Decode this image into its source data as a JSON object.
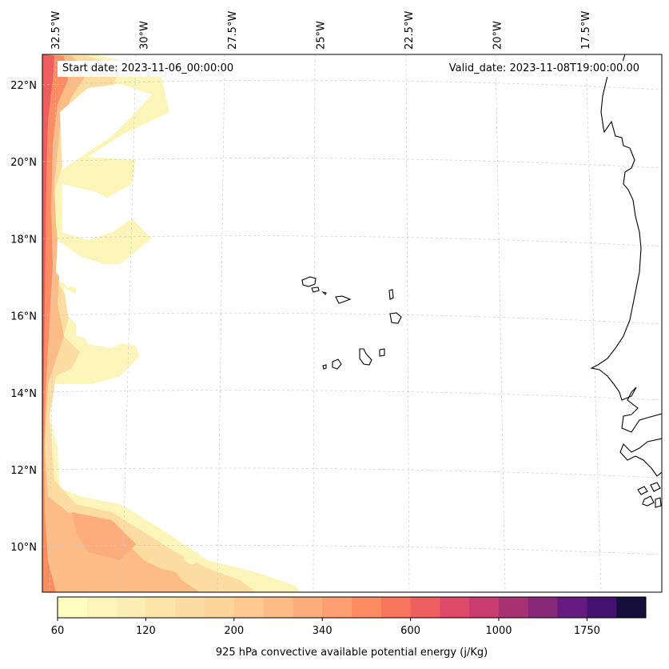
{
  "map": {
    "start_date_label": "Start date: 2023-11-06_00:00:00",
    "valid_date_label": "Valid_date: 2023-11-08T19:00:00.00",
    "lon_ticks": [
      {
        "label": "32.5°W",
        "lon": -32.5
      },
      {
        "label": "30°W",
        "lon": -30
      },
      {
        "label": "27.5°W",
        "lon": -27.5
      },
      {
        "label": "25°W",
        "lon": -25
      },
      {
        "label": "22.5°W",
        "lon": -22.5
      },
      {
        "label": "20°W",
        "lon": -20
      },
      {
        "label": "17.5°W",
        "lon": -17.5
      }
    ],
    "lat_ticks": [
      {
        "label": "22°N",
        "lat": 22
      },
      {
        "label": "20°N",
        "lat": 20
      },
      {
        "label": "18°N",
        "lat": 18
      },
      {
        "label": "16°N",
        "lat": 16
      },
      {
        "label": "14°N",
        "lat": 14
      },
      {
        "label": "12°N",
        "lat": 12
      },
      {
        "label": "10°N",
        "lat": 10
      }
    ],
    "extent": {
      "lon_min": -32.5,
      "lon_max": -15.6,
      "lat_min": 8.9,
      "lat_max": 22.7
    },
    "gridlines": true,
    "coastline_color": "#000000"
  },
  "colorbar": {
    "label": "925 hPa convective available potential energy (j/Kg)",
    "tick_labels": [
      "60",
      "120",
      "200",
      "340",
      "600",
      "1000",
      "1750"
    ],
    "tick_bins": [
      0,
      3,
      6,
      9,
      12,
      15,
      18
    ],
    "colors": [
      "#fcfdbf",
      "#fcf5b9",
      "#fcedb2",
      "#fde5aa",
      "#fddca2",
      "#fdd49a",
      "#fec891",
      "#fdbc86",
      "#fdad7b",
      "#fd9f71",
      "#fc8d62",
      "#f8765c",
      "#ed5f5e",
      "#dd4968",
      "#c83c70",
      "#a73173",
      "#862778",
      "#651a80",
      "#43116e",
      "#160f3b"
    ]
  }
}
